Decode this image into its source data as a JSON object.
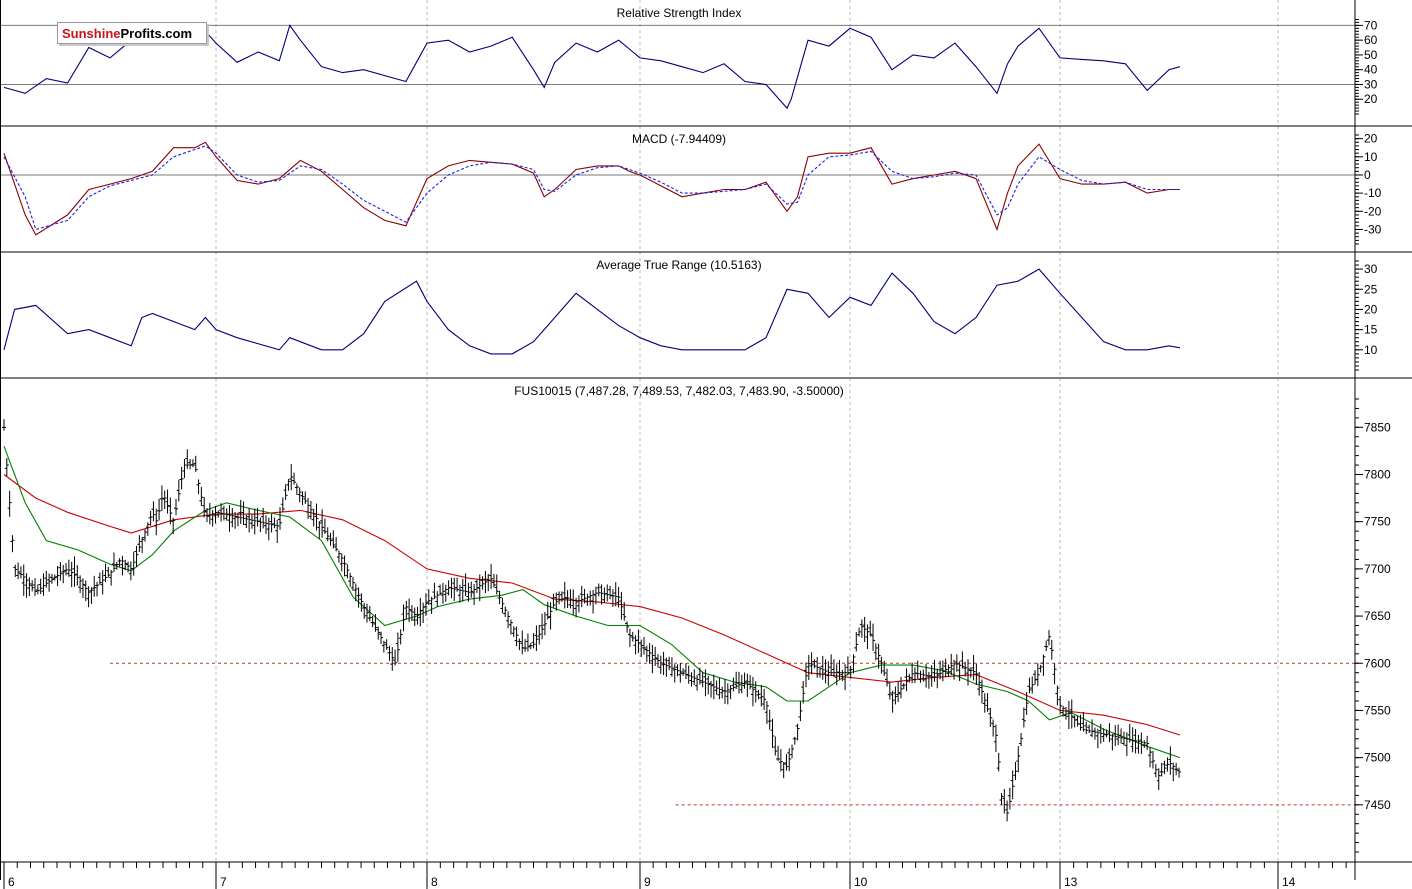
{
  "brand": {
    "part1": "Sunshine",
    "part2": "Profits.com"
  },
  "panels": {
    "rsi": {
      "title": "Relative Strength Index"
    },
    "macd": {
      "title": "MACD (-7.94409)"
    },
    "atr": {
      "title": "Average True Range (10.5163)"
    },
    "price": {
      "title": "FUS10015 (7,487.28, 7,489.53, 7,482.03, 7,483.90, -3.50000)"
    }
  },
  "chart_data": [
    {
      "type": "line",
      "panel": "rsi",
      "title": "Relative Strength Index",
      "ylim": [
        10,
        75
      ],
      "yticks": [
        70,
        60,
        50,
        40,
        30,
        20
      ],
      "reference_lines": [
        70,
        30
      ],
      "series": [
        {
          "color": "#00007a",
          "x": [
            6.0,
            6.1,
            6.2,
            6.3,
            6.4,
            6.5,
            6.6,
            6.7,
            6.8,
            6.9,
            6.95,
            7.0,
            7.1,
            7.2,
            7.3,
            7.35,
            7.4,
            7.5,
            7.6,
            7.7,
            7.8,
            7.9,
            7.95,
            8.0,
            8.1,
            8.2,
            8.3,
            8.4,
            8.5,
            8.55,
            8.6,
            8.7,
            8.8,
            8.9,
            8.95,
            9.0,
            9.1,
            9.2,
            9.3,
            9.4,
            9.5,
            9.6,
            9.7,
            9.72,
            9.8,
            9.9,
            10.0,
            10.1,
            10.2,
            10.3,
            10.4,
            10.5,
            10.6,
            10.7,
            10.75,
            10.8,
            10.9,
            11.0,
            11.1,
            11.2,
            11.3,
            11.4,
            11.5,
            11.55
          ],
          "y": [
            28,
            24,
            34,
            31,
            55,
            48,
            60,
            58,
            62,
            70,
            66,
            58,
            45,
            52,
            46,
            70,
            60,
            42,
            38,
            40,
            36,
            32,
            45,
            58,
            60,
            52,
            56,
            62,
            40,
            28,
            45,
            58,
            52,
            60,
            54,
            48,
            46,
            42,
            38,
            44,
            32,
            30,
            14,
            20,
            60,
            56,
            68,
            62,
            40,
            50,
            48,
            58,
            42,
            24,
            44,
            56,
            68,
            48,
            47,
            46,
            44,
            26,
            40,
            42
          ]
        }
      ]
    },
    {
      "type": "line",
      "panel": "macd",
      "title": "MACD (-7.94409)",
      "ylim": [
        -38,
        22
      ],
      "yticks": [
        20,
        10,
        0,
        -10,
        -20,
        -30
      ],
      "reference_lines": [
        0
      ],
      "series": [
        {
          "name": "MACD",
          "color": "#8b0000",
          "x": [
            6.0,
            6.1,
            6.15,
            6.3,
            6.4,
            6.5,
            6.6,
            6.7,
            6.8,
            6.9,
            6.95,
            7.0,
            7.1,
            7.2,
            7.3,
            7.4,
            7.5,
            7.6,
            7.7,
            7.8,
            7.9,
            8.0,
            8.1,
            8.2,
            8.3,
            8.4,
            8.5,
            8.55,
            8.6,
            8.7,
            8.8,
            8.9,
            8.95,
            9.0,
            9.1,
            9.2,
            9.3,
            9.4,
            9.5,
            9.6,
            9.7,
            9.75,
            9.8,
            9.9,
            10.0,
            10.1,
            10.2,
            10.3,
            10.4,
            10.5,
            10.6,
            10.7,
            10.75,
            10.8,
            10.9,
            11.0,
            11.1,
            11.2,
            11.3,
            11.4,
            11.5,
            11.55
          ],
          "y": [
            12,
            -22,
            -33,
            -22,
            -8,
            -5,
            -2,
            2,
            15,
            15,
            18,
            10,
            -3,
            -5,
            -2,
            8,
            2,
            -8,
            -18,
            -25,
            -28,
            -2,
            5,
            8,
            7,
            6,
            1,
            -12,
            -8,
            3,
            5,
            5,
            2,
            0,
            -6,
            -12,
            -10,
            -8,
            -8,
            -4,
            -20,
            -12,
            10,
            12,
            12,
            15,
            -5,
            -2,
            0,
            2,
            -2,
            -30,
            -10,
            5,
            17,
            -2,
            -5,
            -5,
            -4,
            -10,
            -8,
            -8
          ]
        },
        {
          "name": "Signal",
          "color": "#2020e0",
          "x": [
            6.0,
            6.1,
            6.15,
            6.3,
            6.4,
            6.5,
            6.6,
            6.7,
            6.8,
            6.9,
            6.95,
            7.0,
            7.1,
            7.2,
            7.3,
            7.4,
            7.5,
            7.6,
            7.7,
            7.8,
            7.9,
            8.0,
            8.1,
            8.2,
            8.3,
            8.4,
            8.5,
            8.55,
            8.6,
            8.7,
            8.8,
            8.9,
            8.95,
            9.0,
            9.1,
            9.2,
            9.3,
            9.4,
            9.5,
            9.6,
            9.7,
            9.75,
            9.8,
            9.9,
            10.0,
            10.1,
            10.2,
            10.3,
            10.4,
            10.5,
            10.6,
            10.7,
            10.75,
            10.8,
            10.9,
            11.0,
            11.1,
            11.2,
            11.3,
            11.4,
            11.5,
            11.55
          ],
          "y": [
            10,
            -12,
            -30,
            -25,
            -12,
            -6,
            -3,
            0,
            10,
            14,
            16,
            12,
            0,
            -4,
            -3,
            5,
            3,
            -5,
            -14,
            -20,
            -26,
            -10,
            0,
            5,
            7,
            6,
            3,
            -8,
            -9,
            0,
            4,
            5,
            3,
            1,
            -4,
            -10,
            -10,
            -9,
            -8,
            -5,
            -16,
            -15,
            0,
            10,
            11,
            13,
            2,
            -2,
            -1,
            1,
            0,
            -22,
            -18,
            -5,
            10,
            3,
            -3,
            -5,
            -4,
            -8,
            -8,
            -8
          ]
        }
      ]
    },
    {
      "type": "line",
      "panel": "atr",
      "title": "Average True Range (10.5163)",
      "ylim": [
        5,
        32
      ],
      "yticks": [
        30,
        25,
        20,
        15,
        10
      ],
      "series": [
        {
          "color": "#00007a",
          "x": [
            6.0,
            6.05,
            6.15,
            6.3,
            6.4,
            6.5,
            6.6,
            6.65,
            6.7,
            6.9,
            6.95,
            7.0,
            7.1,
            7.3,
            7.35,
            7.5,
            7.6,
            7.7,
            7.8,
            7.95,
            8.0,
            8.1,
            8.2,
            8.3,
            8.4,
            8.5,
            8.6,
            8.7,
            8.8,
            8.9,
            9.0,
            9.1,
            9.2,
            9.3,
            9.5,
            9.6,
            9.7,
            9.8,
            9.9,
            10.0,
            10.1,
            10.2,
            10.3,
            10.4,
            10.5,
            10.6,
            10.7,
            10.8,
            10.9,
            11.0,
            11.1,
            11.2,
            11.3,
            11.4,
            11.5,
            11.55
          ],
          "y": [
            10,
            20,
            21,
            14,
            15,
            13,
            11,
            18,
            19,
            15,
            18,
            15,
            13,
            10,
            13,
            10,
            10,
            14,
            22,
            27,
            22,
            15,
            11,
            9,
            9,
            12,
            18,
            24,
            20,
            16,
            13,
            11,
            10,
            10,
            10,
            13,
            25,
            24,
            18,
            23,
            21,
            29,
            24,
            17,
            14,
            18,
            26,
            27,
            30,
            24,
            18,
            12,
            10,
            10,
            11,
            10.5
          ]
        }
      ]
    },
    {
      "type": "candlestick",
      "panel": "price",
      "title": "FUS10015 (7,487.28, 7,489.53, 7,482.03, 7,483.90, -3.50000)",
      "ylim": [
        7400,
        7880
      ],
      "yticks": [
        7850,
        7800,
        7750,
        7700,
        7650,
        7600,
        7550,
        7500,
        7450
      ],
      "x_ticks": [
        "6",
        "7",
        "8",
        "9",
        "10",
        "13",
        "14"
      ],
      "reference_lines": [
        {
          "value": 7600,
          "from_x": 6.5,
          "color": "#c0392b",
          "style": "dashed"
        },
        {
          "value": 7450,
          "from_x": 9.17,
          "color": "#c0392b",
          "style": "dashed"
        }
      ],
      "close": {
        "x": [
          6.0,
          6.05,
          6.1,
          6.15,
          6.2,
          6.3,
          6.35,
          6.4,
          6.5,
          6.55,
          6.6,
          6.7,
          6.72,
          6.75,
          6.8,
          6.85,
          6.9,
          6.95,
          7.0,
          7.1,
          7.2,
          7.3,
          7.35,
          7.4,
          7.5,
          7.6,
          7.7,
          7.8,
          7.85,
          7.9,
          7.95,
          8.0,
          8.1,
          8.2,
          8.3,
          8.4,
          8.45,
          8.5,
          8.55,
          8.6,
          8.65,
          8.7,
          8.8,
          8.9,
          8.95,
          9.0,
          9.1,
          9.2,
          9.3,
          9.4,
          9.5,
          9.6,
          9.65,
          9.7,
          9.75,
          9.8,
          9.9,
          10.0,
          10.05,
          10.1,
          10.15,
          10.2,
          10.3,
          10.4,
          10.5,
          10.6,
          10.65,
          10.7,
          10.72,
          10.75,
          10.8,
          10.85,
          10.9,
          10.95,
          11.0,
          11.05,
          11.1,
          11.2,
          11.3,
          11.4,
          11.45,
          11.5,
          11.55
        ],
        "y": [
          7850,
          7700,
          7690,
          7675,
          7685,
          7700,
          7690,
          7675,
          7695,
          7710,
          7700,
          7760,
          7750,
          7780,
          7750,
          7810,
          7810,
          7755,
          7760,
          7755,
          7750,
          7745,
          7800,
          7780,
          7745,
          7710,
          7660,
          7620,
          7600,
          7660,
          7650,
          7665,
          7680,
          7675,
          7690,
          7640,
          7615,
          7620,
          7640,
          7665,
          7670,
          7665,
          7675,
          7670,
          7630,
          7620,
          7600,
          7590,
          7580,
          7570,
          7580,
          7560,
          7500,
          7490,
          7530,
          7600,
          7590,
          7590,
          7640,
          7630,
          7600,
          7560,
          7590,
          7585,
          7600,
          7590,
          7555,
          7520,
          7460,
          7440,
          7500,
          7570,
          7590,
          7630,
          7555,
          7545,
          7530,
          7525,
          7520,
          7515,
          7480,
          7495,
          7484
        ]
      },
      "moving_averages": [
        {
          "color": "#cc0000",
          "x": [
            6.0,
            6.15,
            6.3,
            6.5,
            6.6,
            6.8,
            7.0,
            7.2,
            7.4,
            7.6,
            7.8,
            8.0,
            8.2,
            8.4,
            8.6,
            8.8,
            9.0,
            9.2,
            9.4,
            9.6,
            9.8,
            10.0,
            10.2,
            10.4,
            10.6,
            10.8,
            11.0,
            11.2,
            11.4,
            11.55
          ],
          "y": [
            7800,
            7775,
            7760,
            7745,
            7738,
            7752,
            7758,
            7758,
            7762,
            7752,
            7730,
            7700,
            7690,
            7685,
            7668,
            7665,
            7660,
            7648,
            7630,
            7610,
            7590,
            7585,
            7580,
            7585,
            7588,
            7570,
            7550,
            7545,
            7535,
            7524
          ]
        },
        {
          "color": "#008000",
          "x": [
            6.0,
            6.1,
            6.2,
            6.35,
            6.5,
            6.6,
            6.7,
            6.8,
            6.95,
            7.05,
            7.2,
            7.35,
            7.5,
            7.65,
            7.8,
            7.95,
            8.05,
            8.2,
            8.35,
            8.45,
            8.55,
            8.7,
            8.85,
            9.0,
            9.15,
            9.3,
            9.45,
            9.6,
            9.7,
            9.8,
            9.9,
            10.0,
            10.15,
            10.3,
            10.45,
            10.6,
            10.75,
            10.85,
            10.95,
            11.05,
            11.2,
            11.4,
            11.55
          ],
          "y": [
            7830,
            7770,
            7730,
            7720,
            7705,
            7698,
            7715,
            7740,
            7762,
            7770,
            7762,
            7755,
            7730,
            7670,
            7640,
            7650,
            7660,
            7668,
            7672,
            7678,
            7662,
            7650,
            7640,
            7640,
            7620,
            7590,
            7580,
            7575,
            7560,
            7560,
            7575,
            7590,
            7598,
            7598,
            7592,
            7578,
            7570,
            7560,
            7540,
            7548,
            7530,
            7512,
            7500
          ]
        }
      ]
    }
  ]
}
